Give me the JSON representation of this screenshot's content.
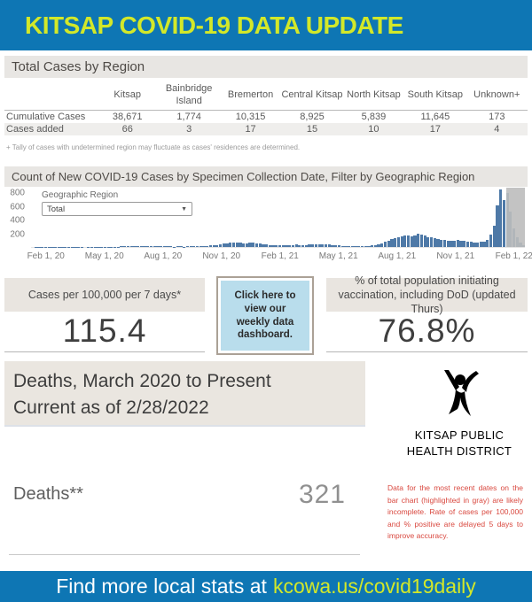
{
  "header": {
    "title": "KITSAP COVID-19 DATA UPDATE"
  },
  "regions_section": {
    "title": "Total Cases by Region",
    "columns": [
      "Kitsap",
      "Bainbridge Island",
      "Bremerton",
      "Central Kitsap",
      "North Kitsap",
      "South Kitsap",
      "Unknown+"
    ],
    "rows": [
      {
        "label": "Cumulative Cases",
        "values": [
          "38,671",
          "1,774",
          "10,315",
          "8,925",
          "5,839",
          "11,645",
          "173"
        ]
      },
      {
        "label": "Cases added",
        "values": [
          "66",
          "3",
          "17",
          "15",
          "10",
          "17",
          "4"
        ]
      }
    ],
    "footnote": "+ Tally of cases with undetermined region may fluctuate as cases' residences are determined."
  },
  "chart_section": {
    "title": "Count of New COVID-19 Cases by Specimen Collection Date, Filter by Geographic Region",
    "filter_label": "Geographic Region",
    "filter_value": "Total"
  },
  "chart_data": {
    "type": "bar",
    "title": "Count of New COVID-19 Cases by Specimen Collection Date, Filter by Geographic Region",
    "xlabel": "Specimen Collection Date",
    "ylabel": "Count of New COVID-19 Cases",
    "x_tick_labels": [
      "Feb 1, 20",
      "May 1, 20",
      "Aug 1, 20",
      "Nov 1, 20",
      "Feb 1, 21",
      "May 1, 21",
      "Aug 1, 21",
      "Nov 1, 21",
      "Feb 1, 22"
    ],
    "y_ticks": [
      200,
      400,
      600,
      800
    ],
    "ylim": [
      0,
      880
    ],
    "grid": false,
    "legend": false,
    "highlight_recent_fraction": 0.038,
    "bar_color": "#4e79a7",
    "highlight_color": "#bdbdbd",
    "series": [
      {
        "name": "Total",
        "values": [
          1,
          2,
          3,
          4,
          3,
          2,
          3,
          5,
          6,
          5,
          4,
          3,
          2,
          3,
          2,
          2,
          1,
          2,
          2,
          3,
          2,
          2,
          3,
          2,
          3,
          4,
          6,
          8,
          10,
          12,
          14,
          16,
          13,
          11,
          9,
          10,
          12,
          9,
          8,
          7,
          8,
          9,
          7,
          6,
          8,
          7,
          6,
          7,
          8,
          9,
          11,
          13,
          15,
          18,
          22,
          26,
          32,
          40,
          48,
          55,
          60,
          65,
          72,
          60,
          55,
          58,
          62,
          68,
          58,
          48,
          40,
          35,
          30,
          26,
          22,
          20,
          22,
          25,
          28,
          32,
          35,
          30,
          28,
          30,
          33,
          38,
          42,
          45,
          40,
          36,
          34,
          30,
          26,
          22,
          18,
          15,
          13,
          11,
          10,
          9,
          10,
          12,
          15,
          20,
          28,
          40,
          55,
          75,
          95,
          115,
          135,
          150,
          160,
          170,
          165,
          155,
          175,
          200,
          185,
          165,
          150,
          140,
          130,
          118,
          108,
          100,
          95,
          92,
          98,
          105,
          95,
          88,
          82,
          78,
          72,
          70,
          75,
          85,
          110,
          180,
          320,
          620,
          860,
          700,
          800,
          520,
          280,
          150,
          70,
          25
        ]
      }
    ]
  },
  "stats": {
    "case_rate": {
      "label": "Cases per 100,000 per 7 days*",
      "value": "115.4"
    },
    "dashboard_link": {
      "line1": "Click here to",
      "line2": "view our",
      "line3": "weekly data",
      "line4": "dashboard."
    },
    "vaccination": {
      "label": "% of total population initiating vaccination, including DoD (updated Thurs)",
      "value": "76.8%"
    }
  },
  "deaths_section": {
    "title_line1": "Deaths, March 2020 to Present",
    "title_line2": "Current as of 2/28/2022",
    "label": "Deaths**",
    "value": "321"
  },
  "org": {
    "name_line1": "KITSAP PUBLIC",
    "name_line2": "HEALTH DISTRICT"
  },
  "disclaimer": "Data for the most recent dates on the bar chart (highlighted in gray) are likely incomplete. Rate of cases per 100,000 and % positive are delayed 5 days to improve accuracy.",
  "footer": {
    "prefix": "Find more local stats at",
    "link": "kcowa.us/covid19daily"
  },
  "colors": {
    "banner_blue": "#0e76b4",
    "accent_yellow_green": "#d3e829",
    "bar_blue": "#4e79a7",
    "section_header_gray": "#e8e6e3",
    "stat_header_beige": "#e9e5e0",
    "click_box_blue": "#b9ddec",
    "disclaimer_red": "#d9483f",
    "recent_highlight_gray": "#bdbdbd"
  }
}
